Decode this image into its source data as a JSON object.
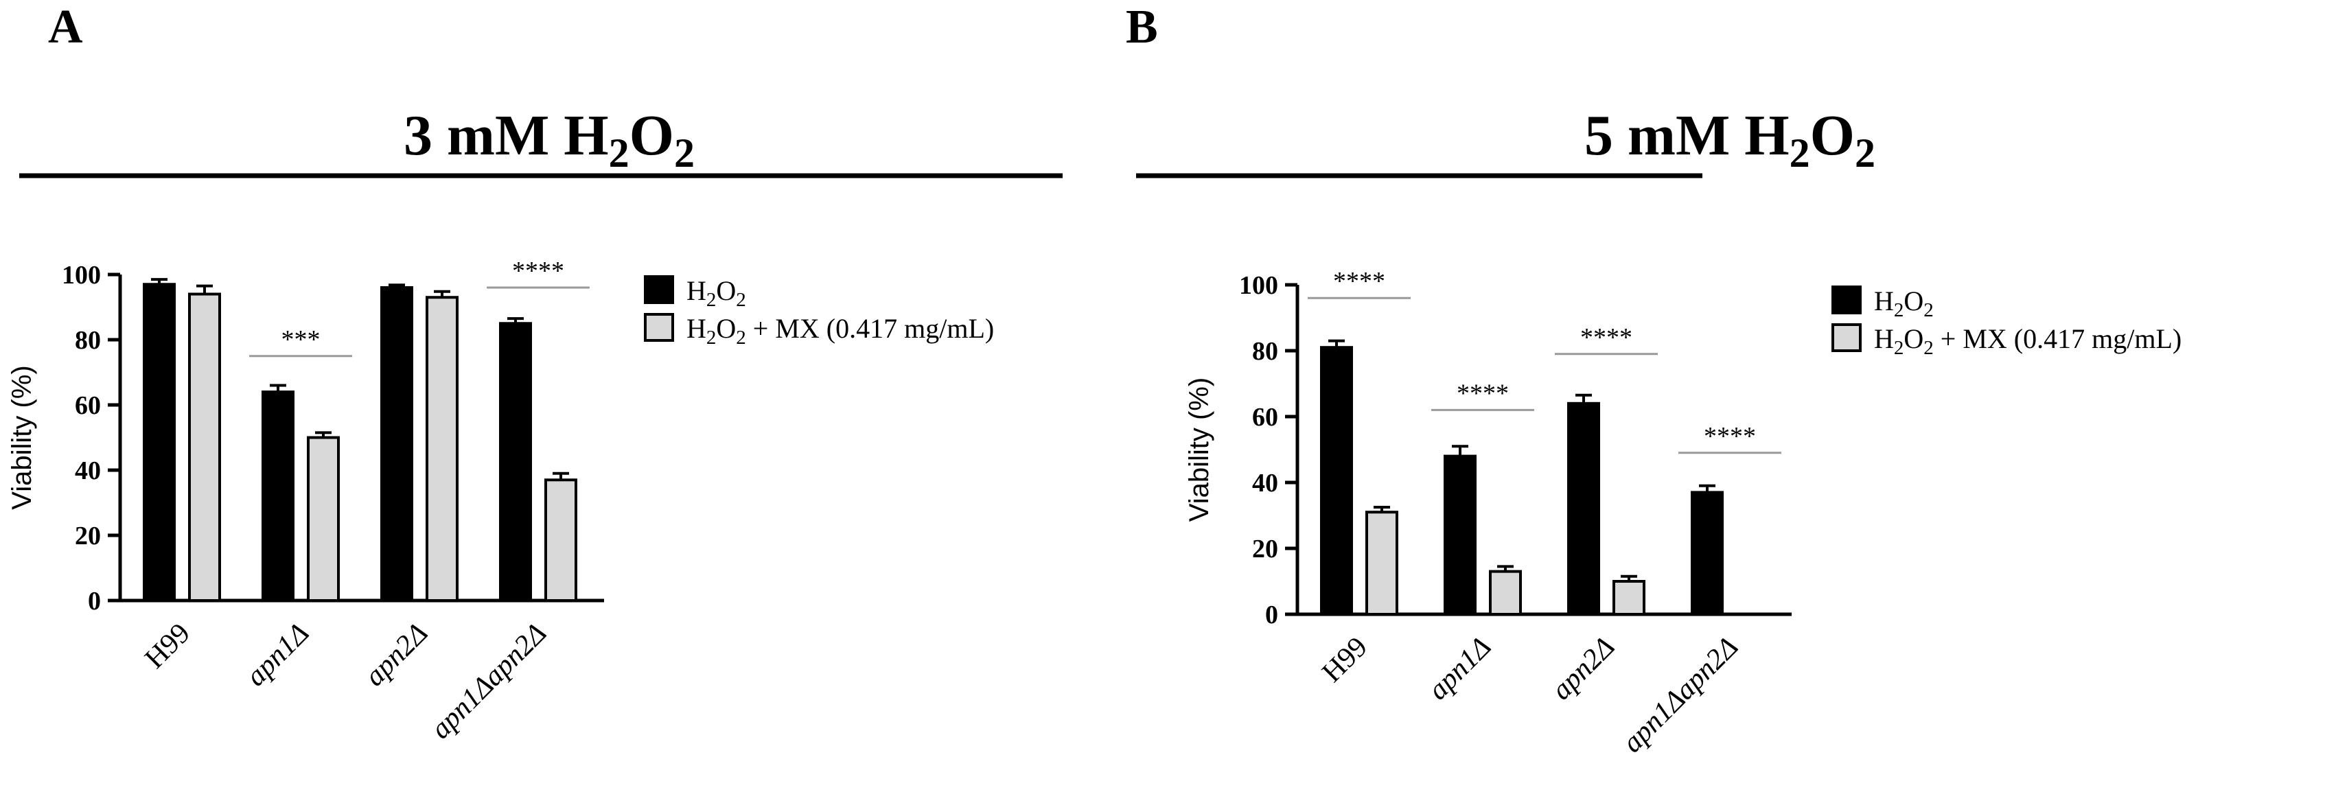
{
  "figure": {
    "panel_letters": [
      "A",
      "B"
    ],
    "colors": {
      "h2o2": "#000000",
      "h2o2_mx": "#d9d9d9",
      "sig_line": "#9a9a9a",
      "axis": "#000000"
    }
  },
  "chart_data": [
    {
      "panel": "A",
      "type": "bar",
      "title": {
        "main": "3 mM H",
        "sub1": "2",
        "mid": "O",
        "sub2": "2"
      },
      "ylabel": "Viability (%)",
      "xlabel": "",
      "ylim": [
        0,
        100
      ],
      "yticks": [
        0,
        20,
        40,
        60,
        80,
        100
      ],
      "categories": [
        "H99",
        "apn1Δ",
        "apn2Δ",
        "apn1Δapn2Δ"
      ],
      "categories_italic": [
        false,
        true,
        true,
        true
      ],
      "series": [
        {
          "name": "H2O2",
          "values": [
            97,
            64,
            96,
            85
          ],
          "errors": [
            1.5,
            2,
            0.8,
            1.5
          ],
          "color": "#000000"
        },
        {
          "name": "H2O2 + MX (0.417 mg/mL)",
          "values": [
            94,
            50,
            93,
            37
          ],
          "errors": [
            2.5,
            1.5,
            1.8,
            2
          ],
          "color": "#d9d9d9"
        }
      ],
      "significance": [
        {
          "category_index": 1,
          "label": "***",
          "y": 75
        },
        {
          "category_index": 3,
          "label": "****",
          "y": 96
        }
      ],
      "legend": {
        "position": "right",
        "entries": [
          {
            "pre": "H",
            "sub1": "2",
            "mid": "O",
            "sub2": "2",
            "post": ""
          },
          {
            "pre": "H",
            "sub1": "2",
            "mid": "O",
            "sub2": "2",
            "post": " + MX (0.417 mg/mL)"
          }
        ]
      },
      "grid": false
    },
    {
      "panel": "B",
      "type": "bar",
      "title": {
        "main": "5 mM H",
        "sub1": "2",
        "mid": "O",
        "sub2": "2"
      },
      "ylabel": "Viability (%)",
      "xlabel": "",
      "ylim": [
        0,
        100
      ],
      "yticks": [
        0,
        20,
        40,
        60,
        80,
        100
      ],
      "categories": [
        "H99",
        "apn1Δ",
        "apn2Δ",
        "apn1Δapn2Δ"
      ],
      "categories_italic": [
        false,
        true,
        true,
        true
      ],
      "series": [
        {
          "name": "H2O2",
          "values": [
            81,
            48,
            64,
            37
          ],
          "errors": [
            2,
            3,
            2.5,
            2
          ],
          "color": "#000000"
        },
        {
          "name": "H2O2 + MX (0.417 mg/mL)",
          "values": [
            31,
            13,
            10,
            0
          ],
          "errors": [
            1.5,
            1.5,
            1.5,
            0
          ],
          "color": "#d9d9d9"
        }
      ],
      "significance": [
        {
          "category_index": 0,
          "label": "****",
          "y": 96
        },
        {
          "category_index": 1,
          "label": "****",
          "y": 62
        },
        {
          "category_index": 2,
          "label": "****",
          "y": 79
        },
        {
          "category_index": 3,
          "label": "****",
          "y": 49
        }
      ],
      "legend": {
        "position": "right",
        "entries": [
          {
            "pre": "H",
            "sub1": "2",
            "mid": "O",
            "sub2": "2",
            "post": ""
          },
          {
            "pre": "H",
            "sub1": "2",
            "mid": "O",
            "sub2": "2",
            "post": " + MX (0.417 mg/mL)"
          }
        ]
      },
      "grid": false
    }
  ]
}
